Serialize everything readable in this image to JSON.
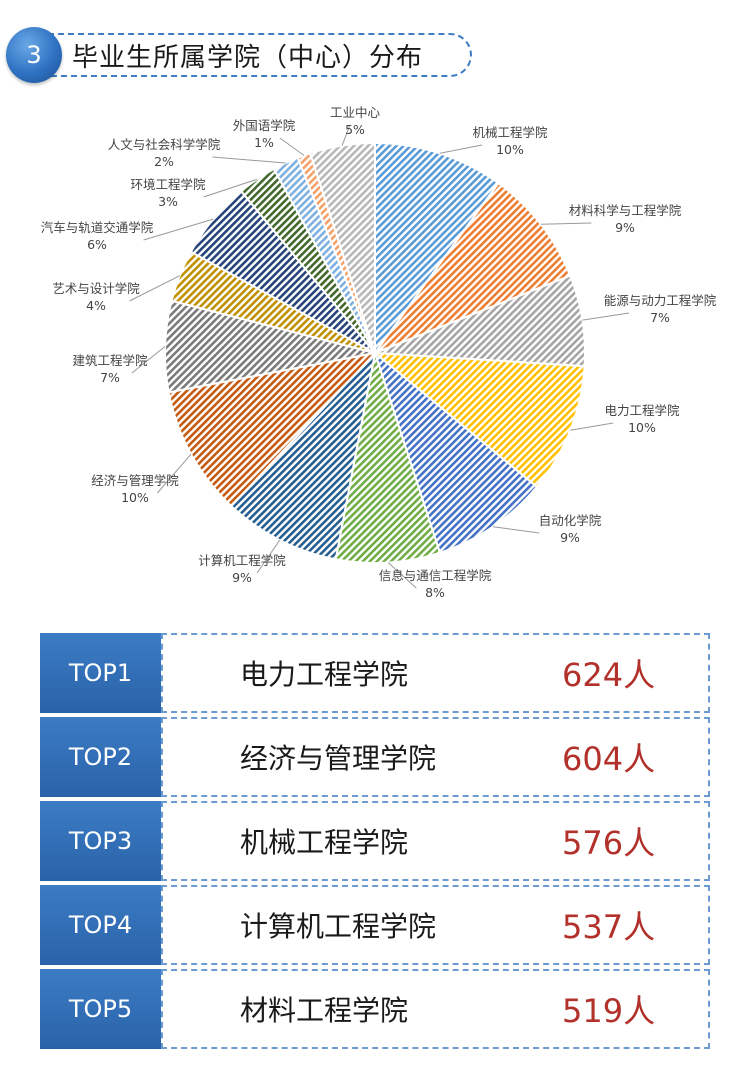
{
  "header": {
    "number": "3",
    "title": "毕业生所属学院（中心）分布"
  },
  "chart_data": {
    "type": "pie",
    "title": "",
    "slices": [
      {
        "label": "机械工程学院",
        "percent_label": "10%",
        "value": 10,
        "color": "#5b9bd5"
      },
      {
        "label": "材料科学与工程学院",
        "percent_label": "9%",
        "value": 9,
        "color": "#ed7d31"
      },
      {
        "label": "能源与动力工程学院",
        "percent_label": "7%",
        "value": 7,
        "color": "#a5a5a5"
      },
      {
        "label": "电力工程学院",
        "percent_label": "10%",
        "value": 10,
        "color": "#ffc000"
      },
      {
        "label": "自动化学院",
        "percent_label": "9%",
        "value": 9,
        "color": "#4472c4"
      },
      {
        "label": "信息与通信工程学院",
        "percent_label": "8%",
        "value": 8,
        "color": "#70ad47"
      },
      {
        "label": "计算机工程学院",
        "percent_label": "9%",
        "value": 9,
        "color": "#255e91"
      },
      {
        "label": "经济与管理学院",
        "percent_label": "10%",
        "value": 10,
        "color": "#c55a11"
      },
      {
        "label": "建筑工程学院",
        "percent_label": "7%",
        "value": 7,
        "color": "#7b7b7b"
      },
      {
        "label": "艺术与设计学院",
        "percent_label": "4%",
        "value": 4,
        "color": "#bf9000"
      },
      {
        "label": "汽车与轨道交通学院",
        "percent_label": "6%",
        "value": 6,
        "color": "#264478"
      },
      {
        "label": "环境工程学院",
        "percent_label": "3%",
        "value": 3,
        "color": "#43682b"
      },
      {
        "label": "人文与社会科学学院",
        "percent_label": "2%",
        "value": 2,
        "color": "#7fb0e0"
      },
      {
        "label": "外国语学院",
        "percent_label": "1%",
        "value": 1,
        "color": "#f4a26a"
      },
      {
        "label": "工业中心",
        "percent_label": "5%",
        "value": 5,
        "color": "#b8b8b8"
      }
    ]
  },
  "top_list": [
    {
      "rank": "TOP1",
      "name": "电力工程学院",
      "count": "624人"
    },
    {
      "rank": "TOP2",
      "name": "经济与管理学院",
      "count": "604人"
    },
    {
      "rank": "TOP3",
      "name": "机械工程学院",
      "count": "576人"
    },
    {
      "rank": "TOP4",
      "name": "计算机工程学院",
      "count": "537人"
    },
    {
      "rank": "TOP5",
      "name": "材料工程学院",
      "count": "519人"
    }
  ]
}
